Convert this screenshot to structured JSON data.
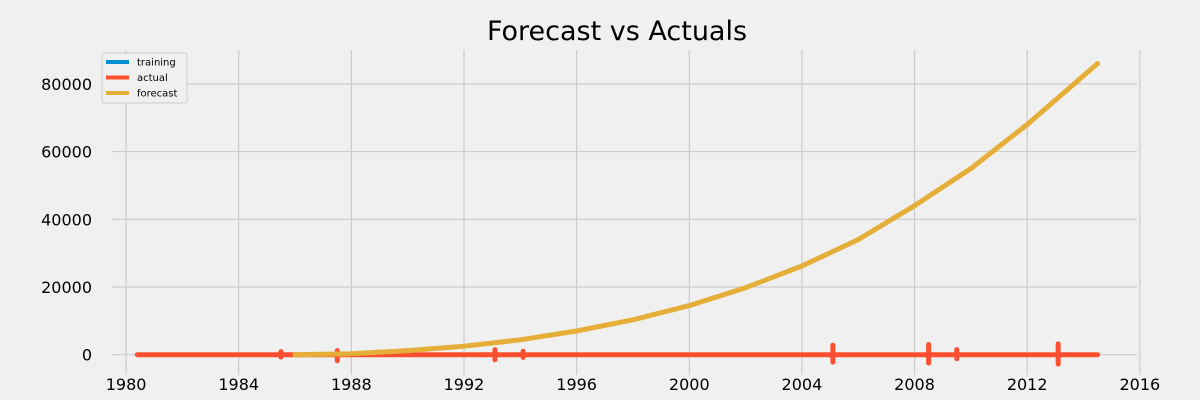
{
  "chart_data": {
    "type": "line",
    "title": "Forecast vs Actuals",
    "xlabel": "",
    "ylabel": "",
    "xlim": [
      1979.5,
      2015.9
    ],
    "ylim": [
      -6000,
      90000
    ],
    "x_ticks": [
      1980,
      1984,
      1988,
      1992,
      1996,
      2000,
      2004,
      2008,
      2012,
      2016
    ],
    "y_ticks": [
      0,
      20000,
      40000,
      60000,
      80000
    ],
    "grid": true,
    "legend": {
      "placement": "top-left"
    },
    "series": [
      {
        "name": "training",
        "color": "#008fd5",
        "x": [],
        "y": []
      },
      {
        "name": "actual",
        "color": "#fc4f30",
        "x": [
          1980.4,
          1983.0,
          1985.5,
          1987.5,
          1990.0,
          1993.1,
          1994.1,
          1997.0,
          2000.0,
          2003.0,
          2005.1,
          2008.5,
          2009.5,
          2011.0,
          2013.1,
          2014.5
        ],
        "y": [
          0,
          0,
          0,
          0,
          0,
          0,
          0,
          0,
          0,
          0,
          0,
          0,
          0,
          0,
          0,
          0
        ],
        "spikes": [
          {
            "x": 1985.5,
            "low": -700,
            "high": 900
          },
          {
            "x": 1987.5,
            "low": -1800,
            "high": 1200
          },
          {
            "x": 1993.1,
            "low": -1500,
            "high": 1500
          },
          {
            "x": 1994.1,
            "low": -800,
            "high": 1000
          },
          {
            "x": 2005.1,
            "low": -2200,
            "high": 2800
          },
          {
            "x": 2008.5,
            "low": -2500,
            "high": 3000
          },
          {
            "x": 2009.5,
            "low": -1200,
            "high": 1500
          },
          {
            "x": 2013.1,
            "low": -2800,
            "high": 3200
          }
        ]
      },
      {
        "name": "forecast",
        "color": "#e5ae38",
        "x": [
          1986.0,
          1988.0,
          1990.0,
          1992.0,
          1994.0,
          1996.0,
          1998.0,
          2000.0,
          2002.0,
          2004.0,
          2006.0,
          2008.0,
          2010.0,
          2012.0,
          2014.5
        ],
        "y": [
          0,
          250,
          1200,
          2500,
          4400,
          7000,
          10300,
          14500,
          19800,
          26200,
          34000,
          44000,
          55000,
          68000,
          86000
        ]
      }
    ]
  }
}
